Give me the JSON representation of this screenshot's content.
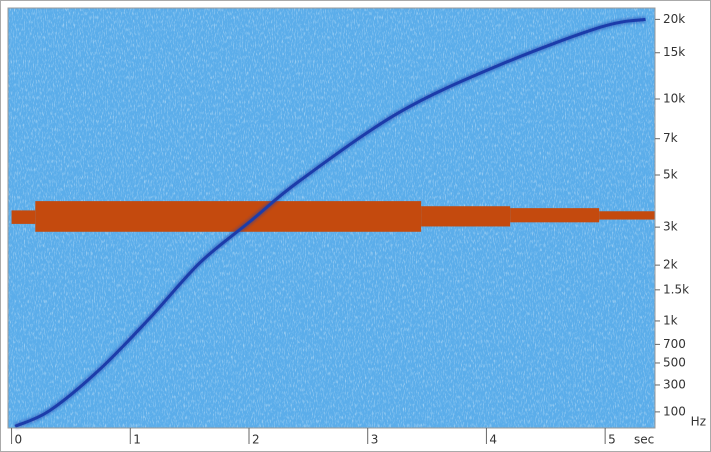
{
  "chart_data": {
    "type": "spectrogram",
    "x_unit": "sec",
    "y_unit": "Hz",
    "xlim": [
      -0.03,
      5.42
    ],
    "xticks": [
      0,
      1,
      2,
      3,
      4,
      5
    ],
    "ylim": [
      0,
      22050
    ],
    "yscale": "mel",
    "yticks": [
      {
        "value": 100,
        "label": "100"
      },
      {
        "value": 300,
        "label": "300"
      },
      {
        "value": 500,
        "label": "500"
      },
      {
        "value": 700,
        "label": "700"
      },
      {
        "value": 1000,
        "label": "1k"
      },
      {
        "value": 1500,
        "label": "1.5k"
      },
      {
        "value": 2000,
        "label": "2k"
      },
      {
        "value": 3000,
        "label": "3k"
      },
      {
        "value": 5000,
        "label": "5k"
      },
      {
        "value": 7000,
        "label": "7k"
      },
      {
        "value": 10000,
        "label": "10k"
      },
      {
        "value": 15000,
        "label": "15k"
      },
      {
        "value": 20000,
        "label": "20k"
      }
    ],
    "background_color": "#5badea",
    "sweep": {
      "color": "#1c3caa",
      "x": [
        0.03,
        0.32,
        0.74,
        1.16,
        1.59,
        2.01,
        2.43,
        3.27,
        4.11,
        4.96,
        5.34
      ],
      "values": [
        10,
        108,
        435,
        1033,
        2063,
        3180,
        4745,
        8900,
        13480,
        18700,
        20000
      ]
    },
    "tone": {
      "color": "#c44a0e",
      "x0": [
        0.0,
        0.2,
        3.45,
        4.2,
        4.95
      ],
      "x1": [
        0.2,
        3.45,
        4.2,
        4.95,
        5.42
      ],
      "low": [
        3100,
        2860,
        3020,
        3150,
        3240
      ],
      "high": [
        3550,
        3890,
        3700,
        3630,
        3520
      ]
    }
  }
}
